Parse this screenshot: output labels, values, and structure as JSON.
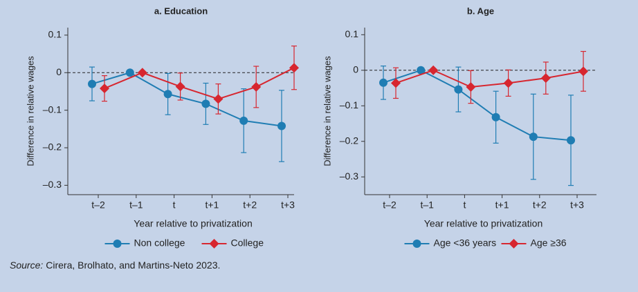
{
  "chart_data": [
    {
      "type": "line",
      "title": "a. Education",
      "ylabel": "Difference in relative wages",
      "xlabel": "Year relative to privatization",
      "categories": [
        "t–2",
        "t–1",
        "t",
        "t+1",
        "t+2",
        "t+3"
      ],
      "series": [
        {
          "name": "Non college",
          "color": "#1f7db3",
          "marker": "circle",
          "values": [
            -0.03,
            0,
            -0.057,
            -0.083,
            -0.128,
            -0.142
          ],
          "errors": [
            0.045,
            null,
            0.055,
            0.055,
            0.085,
            0.095
          ]
        },
        {
          "name": "College",
          "color": "#d7262f",
          "marker": "diamond",
          "values": [
            -0.042,
            0,
            -0.037,
            -0.07,
            -0.038,
            0.013
          ],
          "errors": [
            0.034,
            null,
            0.036,
            0.04,
            0.055,
            0.058
          ]
        }
      ],
      "ylim": [
        -0.325,
        0.12
      ],
      "yticks": [
        0.1,
        0,
        {
          "value": -0.1,
          "label": "–0.1"
        },
        {
          "value": -0.2,
          "label": "–0.2"
        },
        {
          "value": -0.3,
          "label": "–0.3"
        }
      ],
      "hline": 0
    },
    {
      "type": "line",
      "title": "b. Age",
      "ylabel": "Difference in relative wages",
      "xlabel": "Year relative to privatization",
      "categories": [
        "t–2",
        "t–1",
        "t",
        "t+1",
        "t+2",
        "t+3"
      ],
      "series": [
        {
          "name": "Age <36 years",
          "color": "#1f7db3",
          "marker": "circle",
          "values": [
            -0.035,
            0,
            -0.054,
            -0.132,
            -0.187,
            -0.197
          ],
          "errors": [
            0.047,
            null,
            0.063,
            0.073,
            0.12,
            0.127
          ]
        },
        {
          "name": "Age ≥36",
          "color": "#d7262f",
          "marker": "diamond",
          "values": [
            -0.036,
            0,
            -0.047,
            -0.036,
            -0.022,
            -0.003
          ],
          "errors": [
            0.043,
            null,
            0.046,
            0.037,
            0.045,
            0.056
          ]
        }
      ],
      "ylim": [
        -0.35,
        0.12
      ],
      "yticks": [
        0.1,
        0,
        {
          "value": -0.1,
          "label": "–0.1"
        },
        {
          "value": -0.2,
          "label": "–0.2"
        },
        {
          "value": -0.3,
          "label": "–0.3"
        }
      ],
      "hline": 0
    }
  ],
  "source": {
    "label": "Source:",
    "text": "Cirera, Brolhato, and Martins-Neto 2023."
  }
}
